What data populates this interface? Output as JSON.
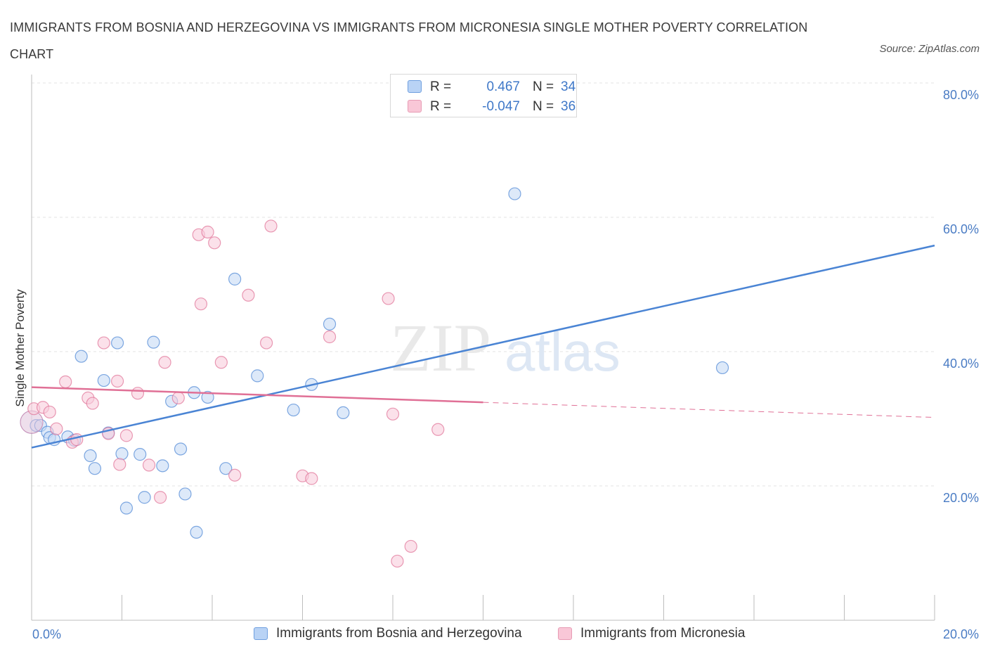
{
  "title": "IMMIGRANTS FROM BOSNIA AND HERZEGOVINA VS IMMIGRANTS FROM MICRONESIA SINGLE MOTHER POVERTY CORRELATION CHART",
  "source": "Source: ZipAtlas.com",
  "watermark": {
    "zip": "ZIP",
    "atlas": "atlas"
  },
  "legend": {
    "r_label": "R =",
    "n_label": "N =",
    "rows": [
      {
        "r": "0.467",
        "n": "34",
        "fill": "#b9d3f5",
        "stroke": "#6f9fdf"
      },
      {
        "r": "-0.047",
        "n": "36",
        "fill": "#f9c7d7",
        "stroke": "#e79bb4"
      }
    ]
  },
  "chart_data": {
    "type": "scatter",
    "title": "IMMIGRANTS FROM BOSNIA AND HERZEGOVINA VS IMMIGRANTS FROM MICRONESIA SINGLE MOTHER POVERTY CORRELATION CHART",
    "xlabel": "",
    "ylabel": "Single Mother Poverty",
    "xlim": [
      0,
      20
    ],
    "ylim": [
      0,
      80
    ],
    "x_tick_labels": {
      "left": "0.0%",
      "right": "20.0%"
    },
    "y_ticks": [
      {
        "value": 20,
        "label": "20.0%"
      },
      {
        "value": 40,
        "label": "40.0%"
      },
      {
        "value": 60,
        "label": "60.0%"
      },
      {
        "value": 80,
        "label": "80.0%"
      }
    ],
    "grid": true,
    "series": [
      {
        "name": "Immigrants from Bosnia and Herzegovina",
        "color": "#4a84d4",
        "fill": "#c6daf5",
        "trend": {
          "x0": 0,
          "y0": 25.7,
          "x1": 20,
          "y1": 55.8,
          "dash_from": null
        },
        "points": [
          [
            0.1,
            29.0
          ],
          [
            0.2,
            29.0
          ],
          [
            0.35,
            28.0
          ],
          [
            0.4,
            27.2
          ],
          [
            0.5,
            26.9
          ],
          [
            0.8,
            27.3
          ],
          [
            0.95,
            26.8
          ],
          [
            1.1,
            39.3
          ],
          [
            1.3,
            24.5
          ],
          [
            1.4,
            22.6
          ],
          [
            1.6,
            35.7
          ],
          [
            1.7,
            27.9
          ],
          [
            1.9,
            41.3
          ],
          [
            2.0,
            24.8
          ],
          [
            2.1,
            16.7
          ],
          [
            2.4,
            24.7
          ],
          [
            2.5,
            18.3
          ],
          [
            2.7,
            41.4
          ],
          [
            2.9,
            23.0
          ],
          [
            3.1,
            32.6
          ],
          [
            3.3,
            25.5
          ],
          [
            3.4,
            18.8
          ],
          [
            3.6,
            33.9
          ],
          [
            3.65,
            13.1
          ],
          [
            3.9,
            33.2
          ],
          [
            4.3,
            22.6
          ],
          [
            4.5,
            50.8
          ],
          [
            5.0,
            36.4
          ],
          [
            5.8,
            31.3
          ],
          [
            6.2,
            35.1
          ],
          [
            6.6,
            44.1
          ],
          [
            6.9,
            30.9
          ],
          [
            10.7,
            63.5
          ],
          [
            15.3,
            37.6
          ]
        ]
      },
      {
        "name": "Immigrants from Micronesia",
        "color": "#e07096",
        "fill": "#f9cddc",
        "trend": {
          "x0": 0,
          "y0": 34.7,
          "x1": 20,
          "y1": 30.2,
          "dash_from": 10.0
        },
        "points": [
          [
            0.05,
            31.5
          ],
          [
            0.25,
            31.7
          ],
          [
            0.4,
            31.0
          ],
          [
            0.55,
            28.5
          ],
          [
            0.75,
            35.5
          ],
          [
            0.9,
            26.5
          ],
          [
            1.0,
            26.9
          ],
          [
            1.25,
            33.1
          ],
          [
            1.35,
            32.3
          ],
          [
            1.6,
            41.3
          ],
          [
            1.7,
            27.8
          ],
          [
            1.9,
            35.6
          ],
          [
            1.95,
            23.2
          ],
          [
            2.1,
            27.5
          ],
          [
            2.35,
            33.8
          ],
          [
            2.6,
            23.1
          ],
          [
            2.85,
            18.3
          ],
          [
            2.95,
            38.4
          ],
          [
            3.25,
            33.1
          ],
          [
            3.7,
            57.4
          ],
          [
            3.9,
            57.8
          ],
          [
            4.05,
            56.2
          ],
          [
            3.75,
            47.1
          ],
          [
            4.2,
            38.4
          ],
          [
            4.5,
            21.6
          ],
          [
            4.8,
            48.4
          ],
          [
            5.2,
            41.3
          ],
          [
            5.3,
            58.7
          ],
          [
            6.0,
            21.5
          ],
          [
            6.2,
            21.1
          ],
          [
            6.6,
            42.2
          ],
          [
            7.9,
            47.9
          ],
          [
            8.0,
            30.7
          ],
          [
            8.1,
            8.8
          ],
          [
            8.4,
            11.0
          ],
          [
            9.0,
            28.4
          ]
        ]
      }
    ]
  }
}
